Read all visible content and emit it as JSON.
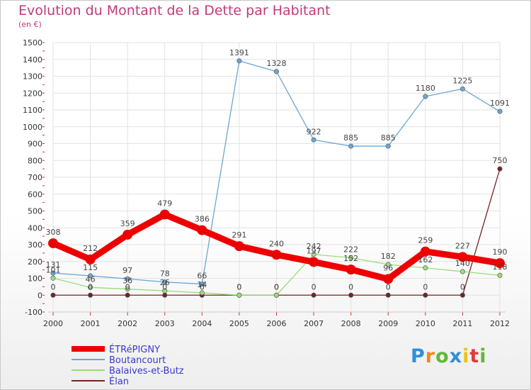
{
  "chart_data": {
    "type": "line",
    "title": "Evolution du Montant de la Dette par Habitant",
    "subtitle": "(en €)",
    "x": [
      "2000",
      "2001",
      "2002",
      "2003",
      "2004",
      "2005",
      "2006",
      "2007",
      "2008",
      "2009",
      "2010",
      "2011",
      "2012"
    ],
    "ylim": [
      -100,
      1500
    ],
    "yticks": [
      -100,
      0,
      100,
      200,
      300,
      400,
      500,
      600,
      700,
      800,
      900,
      1000,
      1100,
      1200,
      1300,
      1400,
      1500
    ],
    "grid": true,
    "legend_position": "bottom-left",
    "series": [
      {
        "name": "ÉTRéPIGNY",
        "color": "#ee0000",
        "values": [
          308,
          212,
          359,
          479,
          386,
          291,
          240,
          197,
          152,
          96,
          259,
          227,
          190
        ]
      },
      {
        "name": "Boutancourt",
        "color": "#6aa6d6",
        "values": [
          131,
          115,
          97,
          78,
          66,
          1391,
          1328,
          922,
          885,
          885,
          1180,
          1225,
          1091
        ]
      },
      {
        "name": "Balaives-et-Butz",
        "color": "#99dd77",
        "values": [
          101,
          46,
          36,
          26,
          14,
          0,
          0,
          242,
          222,
          182,
          162,
          140,
          118
        ]
      },
      {
        "name": "Élan",
        "color": "#772222",
        "values": [
          0,
          0,
          0,
          0,
          0,
          0,
          0,
          0,
          0,
          0,
          0,
          0,
          750
        ]
      }
    ]
  },
  "brand": {
    "letters": [
      "P",
      "r",
      "o",
      "x",
      "i",
      "t",
      "i"
    ],
    "colors": [
      "#2f8fd8",
      "#f08a1c",
      "#5fb83a",
      "#2f8fd8",
      "#f0c020",
      "#e03a3a",
      "#5fb83a"
    ]
  }
}
